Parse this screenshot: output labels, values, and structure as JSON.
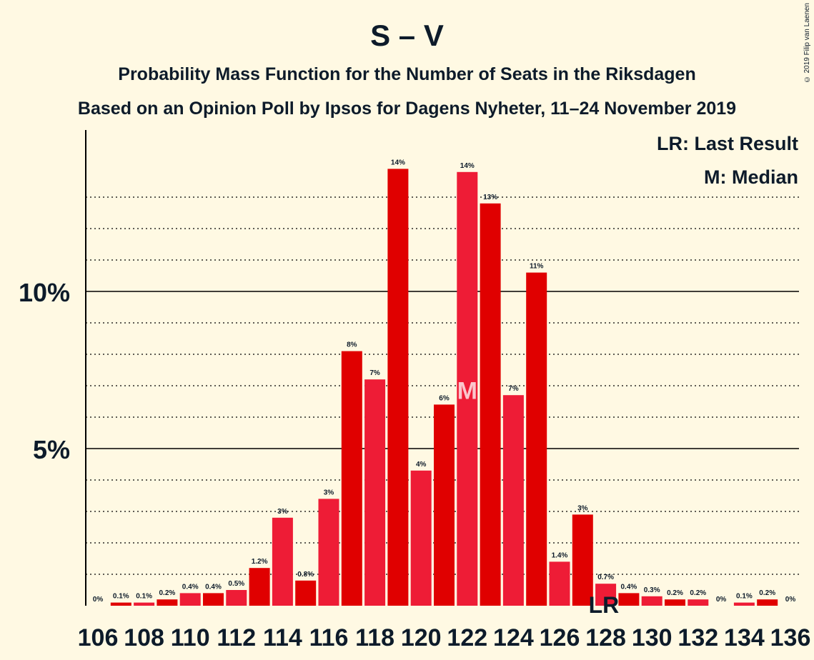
{
  "title": "S – V",
  "subtitle": "Probability Mass Function for the Number of Seats in the Riksdagen",
  "subtitle2": "Based on an Opinion Poll by Ipsos for Dagens Nyheter, 11–24 November 2019",
  "copyright": "© 2019 Filip van Laenen",
  "legend": {
    "lr": "LR: Last Result",
    "m": "M: Median"
  },
  "colors": {
    "background": "#fff9e3",
    "bar_primary": "#e00000",
    "bar_secondary": "#ee1c36",
    "text": "#0d1b2a"
  },
  "chart_data": {
    "type": "bar",
    "x": [
      106,
      107,
      108,
      109,
      110,
      111,
      112,
      113,
      114,
      115,
      116,
      117,
      118,
      119,
      120,
      121,
      122,
      123,
      124,
      125,
      126,
      127,
      128,
      129,
      130,
      131,
      132,
      133,
      134,
      135,
      136
    ],
    "values": [
      0.0,
      0.1,
      0.1,
      0.2,
      0.4,
      0.4,
      0.5,
      1.2,
      2.8,
      0.8,
      3.4,
      8.1,
      7.2,
      13.9,
      4.3,
      6.4,
      13.8,
      12.8,
      6.7,
      10.6,
      1.4,
      2.9,
      0.7,
      0.4,
      0.3,
      0.2,
      0.2,
      0.0,
      0.1,
      0.2,
      0.0
    ],
    "labels": [
      "0%",
      "0.1%",
      "0.1%",
      "0.2%",
      "0.4%",
      "0.4%",
      "0.5%",
      "1.2%",
      "3%",
      "0.8%",
      "3%",
      "8%",
      "7%",
      "14%",
      "4%",
      "6%",
      "14%",
      "13%",
      "7%",
      "11%",
      "1.4%",
      "3%",
      "0.7%",
      "0.4%",
      "0.3%",
      "0.2%",
      "0.2%",
      "0%",
      "0.1%",
      "0.2%",
      "0%"
    ],
    "x_tick_labels": [
      "106",
      "108",
      "110",
      "112",
      "114",
      "116",
      "118",
      "120",
      "122",
      "124",
      "126",
      "128",
      "130",
      "132",
      "134",
      "136"
    ],
    "y_tick_labels": [
      "5%",
      "10%"
    ],
    "y_ticks": [
      5,
      10
    ],
    "ylim": [
      0,
      15
    ],
    "median_seat": 122,
    "median_marker": "M",
    "last_result_seat": 128,
    "last_result_marker": "LR",
    "grid": "dotted every 1%, solid at 5% and 10%"
  }
}
